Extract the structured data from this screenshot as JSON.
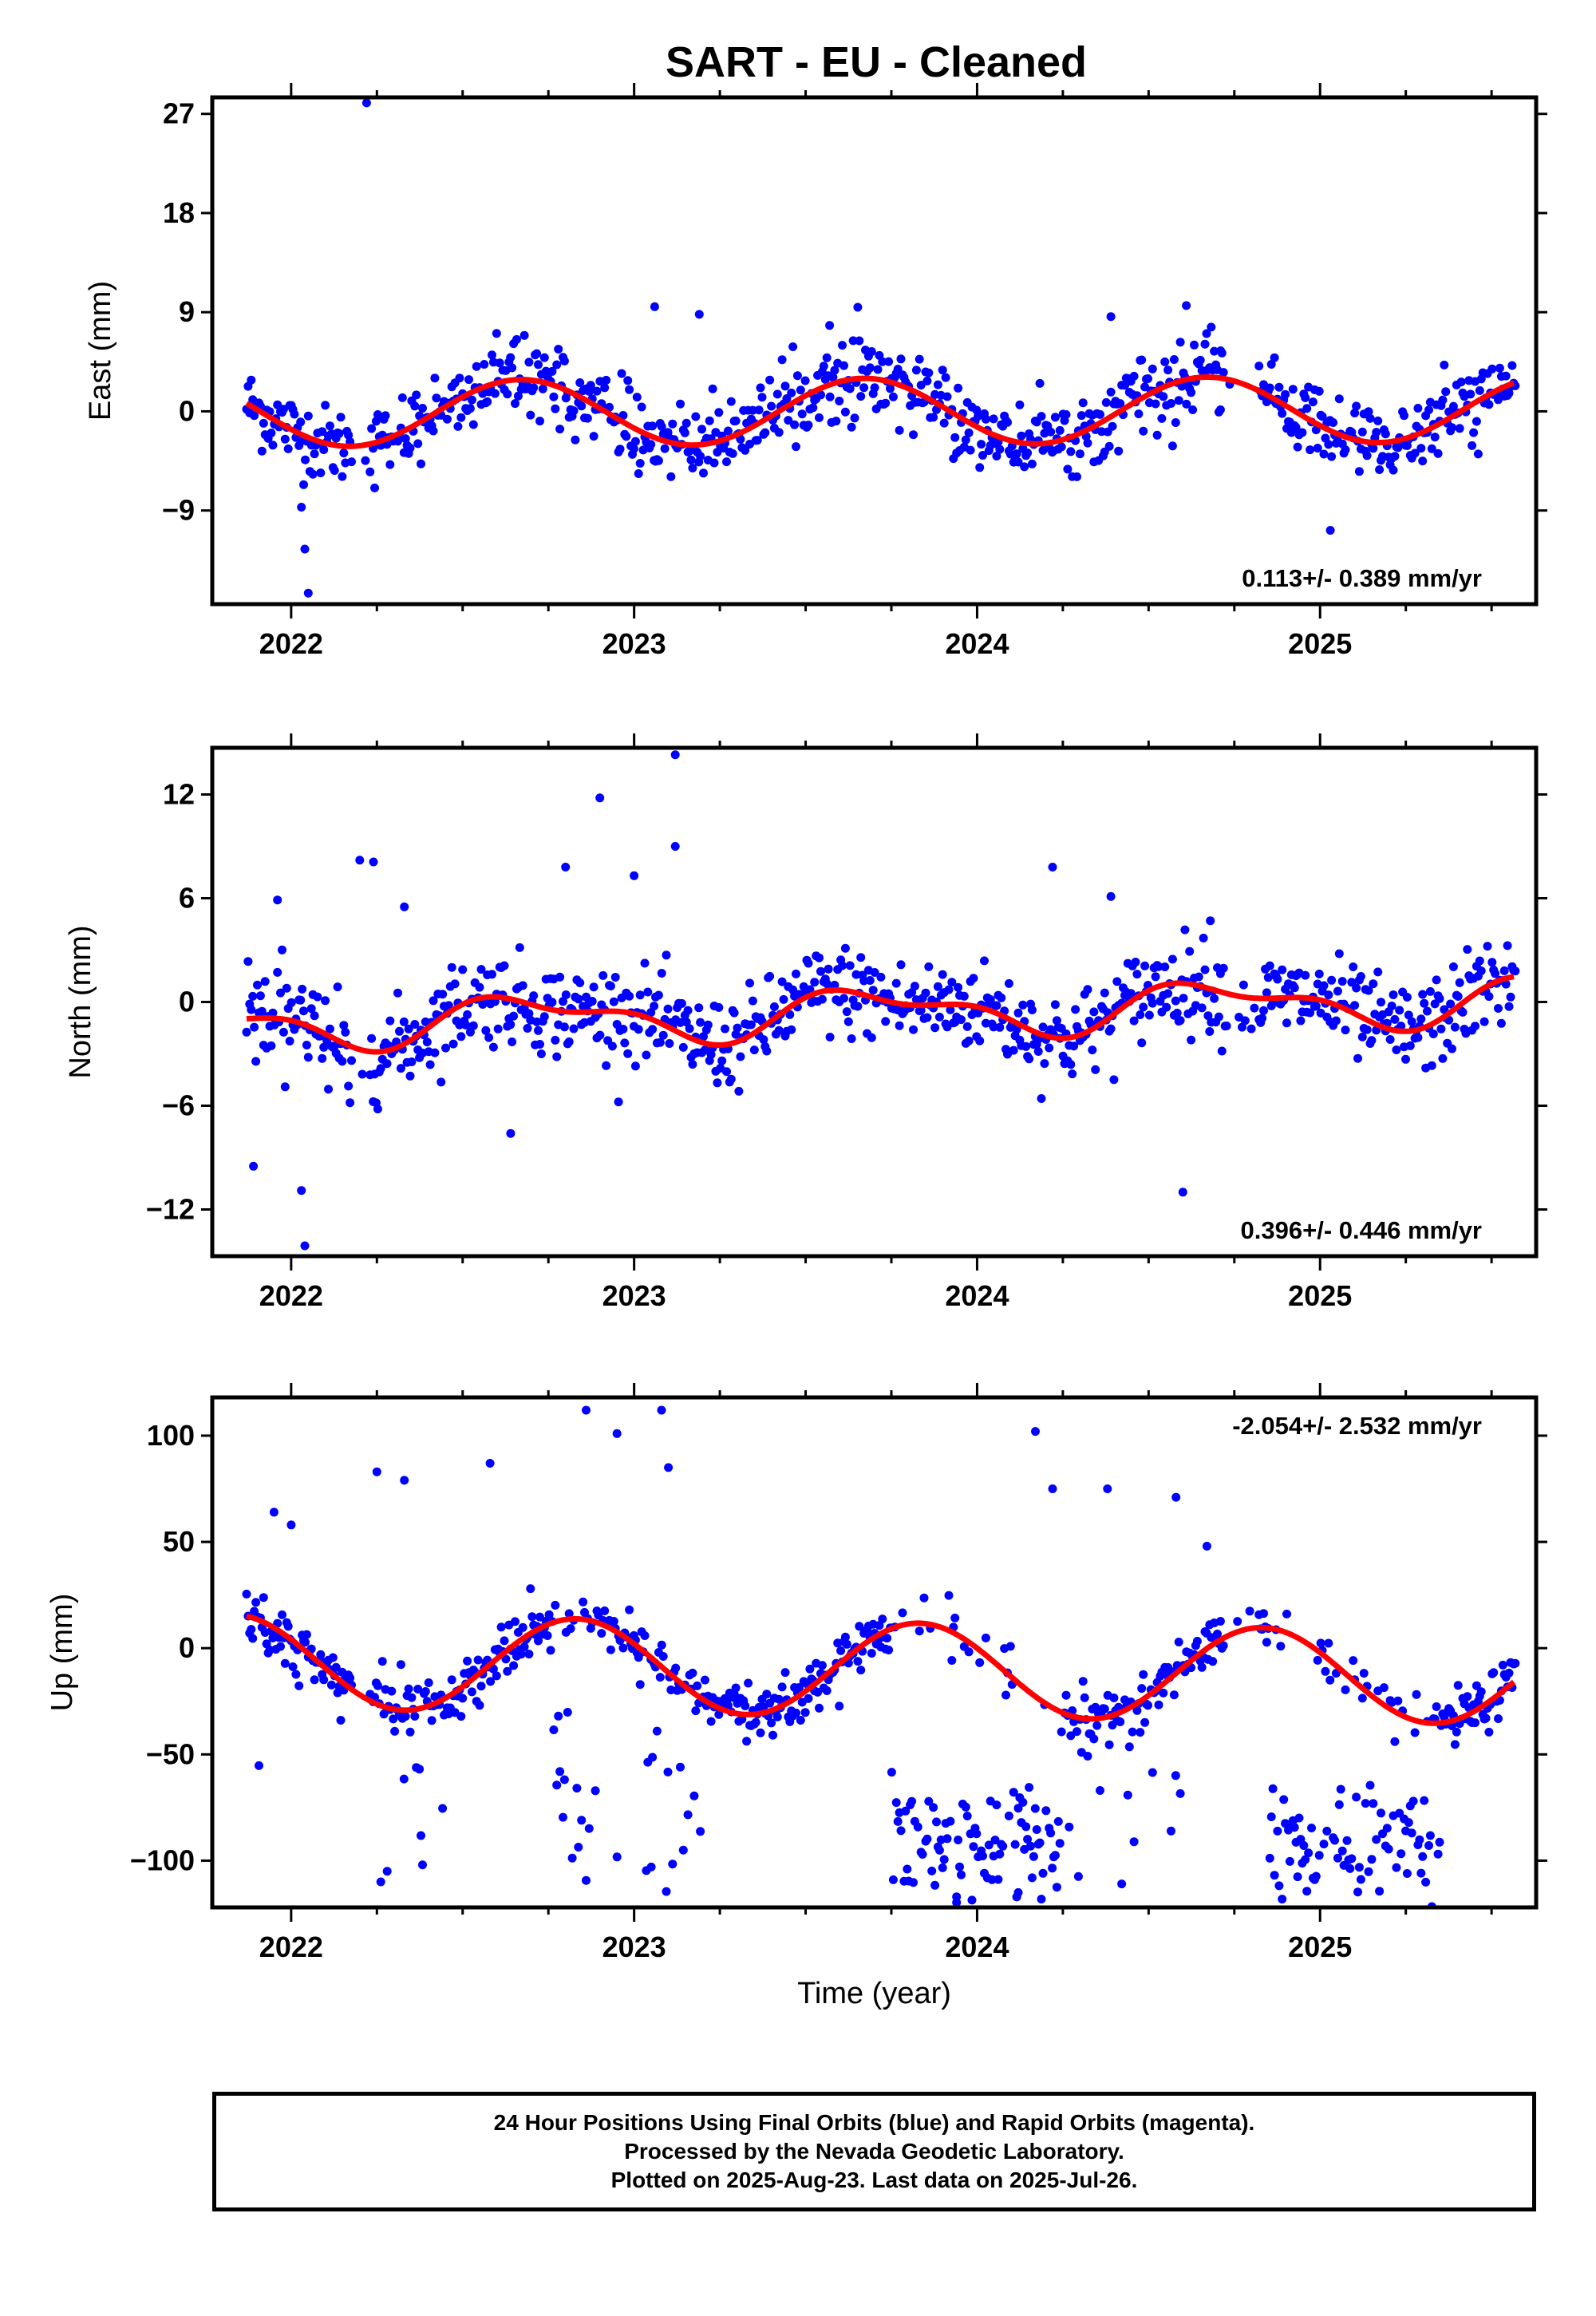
{
  "title": "SART  - EU - Cleaned",
  "colors": {
    "points": "#0000ff",
    "model": "#ff0000",
    "axis": "#000000"
  },
  "x_tick_labels": [
    "2022",
    "2023",
    "2024",
    "2025"
  ],
  "footer": {
    "line1": "24 Hour Positions Using Final Orbits (blue) and Rapid Orbits (magenta).",
    "line2": "Processed by the Nevada Geodetic Laboratory.",
    "line3": "Plotted on 2025-Aug-23. Last data on 2025-Jul-26."
  },
  "chart_data": [
    {
      "type": "scatter",
      "ylabel": "East (mm)",
      "xlabel": "",
      "xlim": [
        2021.77,
        2025.63
      ],
      "ylim": [
        -17.5,
        28.5
      ],
      "yticks": [
        27,
        18,
        9,
        0,
        -9
      ],
      "ytick_labels": [
        "27",
        "18",
        "9",
        "0",
        "−9"
      ],
      "xticks": [
        2022,
        2023,
        2024,
        2025
      ],
      "rate_label": "0.113+/- 0.389 mm/yr",
      "rate_position": "bottom-right",
      "model": {
        "offset": 0.0,
        "trend": 0.113,
        "annual_amp": 3.0,
        "annual_phase": 0.42,
        "semi_amp": 0.0,
        "semi_phase": 0.0
      },
      "scatter_sd": 1.7,
      "outliers": [
        [
          2022.22,
          28.0
        ],
        [
          2022.04,
          -12.5
        ],
        [
          2022.05,
          -16.5
        ],
        [
          2022.03,
          -8.7
        ],
        [
          2023.06,
          9.5
        ],
        [
          2023.19,
          8.8
        ],
        [
          2023.57,
          7.8
        ],
        [
          2024.39,
          8.6
        ],
        [
          2024.61,
          9.6
        ],
        [
          2025.03,
          -10.8
        ],
        [
          2024.71,
          5.5
        ]
      ]
    },
    {
      "type": "scatter",
      "ylabel": "North (mm)",
      "xlabel": "",
      "xlim": [
        2021.77,
        2025.63
      ],
      "ylim": [
        -14.7,
        14.7
      ],
      "yticks": [
        12,
        6,
        0,
        -6,
        -12
      ],
      "ytick_labels": [
        "12",
        "6",
        "0",
        "−6",
        "−12"
      ],
      "xticks": [
        2022,
        2023,
        2024,
        2025
      ],
      "rate_label": "0.396+/- 0.446 mm/yr",
      "rate_position": "bottom-right",
      "model": {
        "offset": -0.6,
        "trend": 0.396,
        "annual_amp": 1.2,
        "annual_phase": 0.45,
        "semi_amp": 0.6,
        "semi_phase": 0.4
      },
      "scatter_sd": 1.3,
      "outliers": [
        [
          2021.89,
          -9.5
        ],
        [
          2021.96,
          5.9
        ],
        [
          2022.03,
          -10.9
        ],
        [
          2022.04,
          -14.1
        ],
        [
          2022.2,
          8.2
        ],
        [
          2022.24,
          8.1
        ],
        [
          2022.33,
          5.5
        ],
        [
          2022.8,
          7.8
        ],
        [
          2022.9,
          11.8
        ],
        [
          2023.0,
          7.3
        ],
        [
          2023.12,
          14.3
        ],
        [
          2023.12,
          9.0
        ],
        [
          2024.22,
          7.8
        ],
        [
          2024.39,
          6.1
        ],
        [
          2024.6,
          -11.0
        ],
        [
          2024.68,
          4.7
        ],
        [
          2022.64,
          -7.6
        ]
      ]
    },
    {
      "type": "scatter",
      "ylabel": "Up (mm)",
      "xlabel": "Time (year)",
      "xlim": [
        2021.77,
        2025.63
      ],
      "ylim": [
        -122,
        118
      ],
      "yticks": [
        100,
        50,
        0,
        -50,
        -100
      ],
      "ytick_labels": [
        "100",
        "50",
        "0",
        "−50",
        "−100"
      ],
      "xticks": [
        2022,
        2023,
        2024,
        2025
      ],
      "rate_label": "-2.054+/- 2.532 mm/yr",
      "rate_position": "top-right",
      "model": {
        "offset": -10.0,
        "trend": -2.054,
        "annual_amp": 22.0,
        "annual_phase": 0.58,
        "semi_amp": 0.0,
        "semi_phase": 0.0
      },
      "scatter_sd": 6.0,
      "offset_clusters": [
        [
          2021.9,
          2022.5,
          -5,
          60,
          0.22
        ],
        [
          2022.75,
          2023.2,
          -15,
          95,
          0.3
        ],
        [
          2023.75,
          2024.25,
          -80,
          40,
          0.8
        ],
        [
          2024.2,
          2024.6,
          -25,
          60,
          0.3
        ],
        [
          2024.85,
          2025.35,
          -85,
          30,
          0.75
        ]
      ],
      "outliers": [
        [
          2022.25,
          83
        ],
        [
          2022.33,
          79
        ],
        [
          2022.58,
          87
        ],
        [
          2022.86,
          112
        ],
        [
          2022.95,
          101
        ],
        [
          2023.08,
          112
        ],
        [
          2023.1,
          85
        ],
        [
          2024.17,
          102
        ],
        [
          2024.22,
          75
        ],
        [
          2024.38,
          75
        ],
        [
          2024.58,
          71
        ],
        [
          2024.67,
          48
        ],
        [
          2021.95,
          64
        ],
        [
          2022.0,
          58
        ],
        [
          2023.94,
          -117
        ],
        [
          2024.12,
          -115
        ],
        [
          2023.05,
          -103
        ],
        [
          2022.28,
          -105
        ]
      ]
    }
  ]
}
